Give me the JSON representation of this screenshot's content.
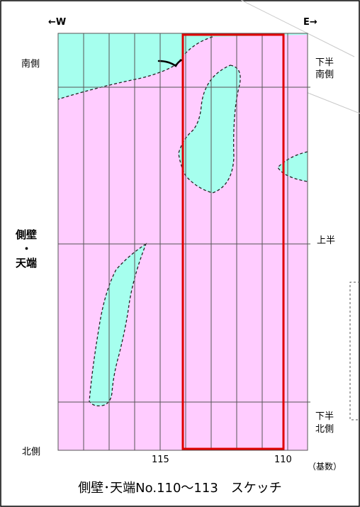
{
  "direction": {
    "west": "←W",
    "east": "E→"
  },
  "left_labels": {
    "south_side": "南側",
    "north_side": "北側"
  },
  "right_labels": {
    "lower_south_line1": "下半",
    "lower_south_line2": "南側",
    "upper": "上半",
    "lower_north_line1": "下半",
    "lower_north_line2": "北側"
  },
  "side_title": {
    "line1": "側壁",
    "line2": "・",
    "line3": "天端"
  },
  "axis": {
    "tick_115": "115",
    "tick_110": "110",
    "unit": "（基数）"
  },
  "caption": "側壁･天端No.110～113　スケッチ",
  "colors": {
    "background": "#ffccff",
    "water_area": "#a6ffee",
    "grid": "#555555",
    "highlight": "#e00000"
  }
}
